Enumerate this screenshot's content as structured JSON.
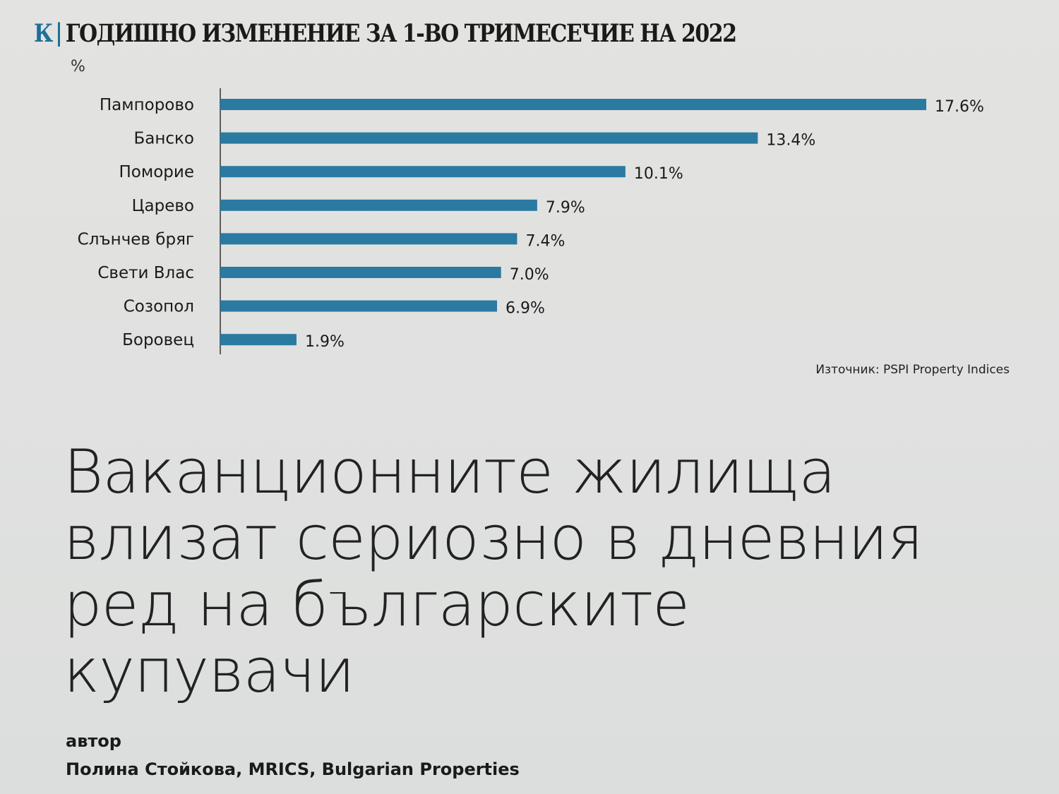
{
  "header": {
    "logo": "К",
    "title": "ГОДИШНО ИЗМЕНЕНИЕ ЗА 1-ВО ТРИМЕСЕЧИЕ НА 2022"
  },
  "chart_data": {
    "type": "bar",
    "orientation": "horizontal",
    "title": "ГОДИШНО ИЗМЕНЕНИЕ ЗА 1-ВО ТРИМЕСЕЧИЕ НА 2022",
    "unit_label": "%",
    "categories": [
      "Пампорово",
      "Банско",
      "Поморие",
      "Царево",
      "Слънчев бряг",
      "Свети Влас",
      "Созопол",
      "Боровец"
    ],
    "values": [
      17.6,
      13.4,
      10.1,
      7.9,
      7.4,
      7.0,
      6.9,
      1.9
    ],
    "data_labels": [
      "17.6%",
      "13.4%",
      "10.1%",
      "7.9%",
      "7.4%",
      "7.0%",
      "6.9%",
      "1.9%"
    ],
    "xlim": [
      0,
      17.6
    ],
    "grid": false,
    "bar_color": "#2a7aa2",
    "source": "Източник: PSPI Property Indices"
  },
  "article": {
    "headline": "Ваканционните жилища влизат сериозно в дневния ред на българските купувачи",
    "author_label": "автор",
    "author": "Полина Стойкова, MRICS, Bulgarian Properties"
  }
}
